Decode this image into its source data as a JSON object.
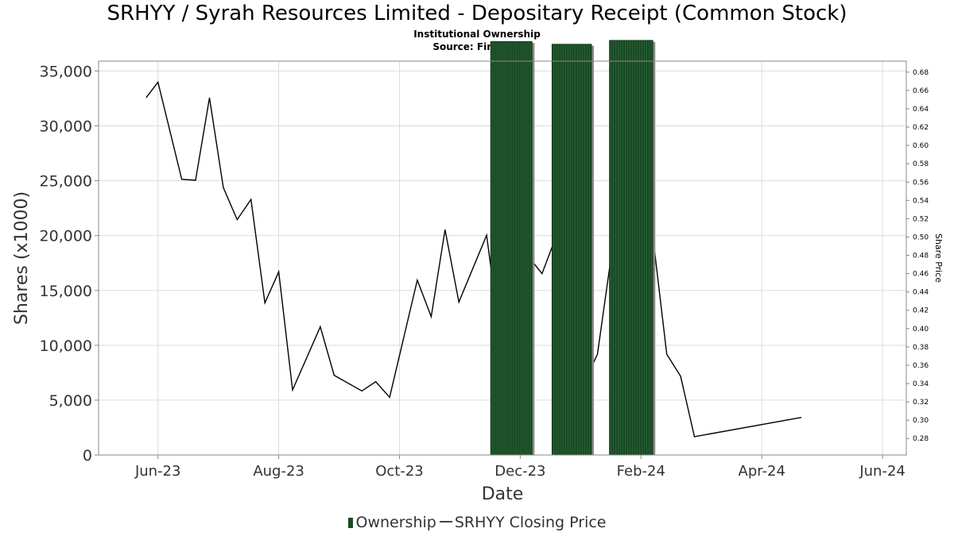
{
  "chart_data": {
    "type": "bar+line",
    "title": "SRHYY / Syrah Resources Limited - Depositary Receipt (Common Stock)",
    "subtitle1": "Institutional Ownership",
    "subtitle2": "Source: Fintel.io",
    "xlabel": "Date",
    "ylabel": "Shares (x1000)",
    "ylabel_right": "Share Price",
    "x_ticks": [
      "Jun-23",
      "Aug-23",
      "Oct-23",
      "Dec-23",
      "Feb-24",
      "Apr-24",
      "Jun-24"
    ],
    "y_ticks": [
      "0",
      "5,000",
      "10,000",
      "15,000",
      "20,000",
      "25,000",
      "30,000",
      "35,000"
    ],
    "y2_ticks": [
      "0.28",
      "0.30",
      "0.32",
      "0.34",
      "0.36",
      "0.38",
      "0.40",
      "0.42",
      "0.44",
      "0.46",
      "0.48",
      "0.50",
      "0.52",
      "0.54",
      "0.56",
      "0.58",
      "0.60",
      "0.62",
      "0.64",
      "0.66",
      "0.68"
    ],
    "ylim": [
      0,
      35900
    ],
    "y2lim": [
      0.262,
      0.692
    ],
    "x_range_days": [
      -16,
      392
    ],
    "x_tick_days": [
      14,
      75,
      136,
      197,
      258,
      319,
      380
    ],
    "ownership": {
      "name": "Ownership",
      "color": "#1a4a24",
      "bars": [
        {
          "start_day": 182,
          "end_day": 203,
          "shares": 37700
        },
        {
          "start_day": 213,
          "end_day": 233,
          "shares": 37450
        },
        {
          "start_day": 242,
          "end_day": 264,
          "shares": 37800
        }
      ]
    },
    "price": {
      "name": "SRHYY Closing Price",
      "color": "#000000",
      "points": [
        [
          8,
          0.652
        ],
        [
          14,
          0.669
        ],
        [
          26,
          0.563
        ],
        [
          33,
          0.562
        ],
        [
          40,
          0.652
        ],
        [
          47,
          0.554
        ],
        [
          54,
          0.519
        ],
        [
          61,
          0.541
        ],
        [
          68,
          0.428
        ],
        [
          75,
          0.462
        ],
        [
          82,
          0.333
        ],
        [
          96,
          0.402
        ],
        [
          103,
          0.349
        ],
        [
          117,
          0.332
        ],
        [
          124,
          0.342
        ],
        [
          131,
          0.325
        ],
        [
          145,
          0.453
        ],
        [
          152,
          0.413
        ],
        [
          159,
          0.508
        ],
        [
          166,
          0.429
        ],
        [
          180,
          0.502
        ],
        [
          187,
          0.387
        ],
        [
          201,
          0.479
        ],
        [
          208,
          0.46
        ],
        [
          215,
          0.5
        ],
        [
          222,
          0.3
        ],
        [
          229,
          0.34
        ],
        [
          236,
          0.372
        ],
        [
          243,
          0.48
        ],
        [
          250,
          0.448
        ],
        [
          257,
          0.48
        ],
        [
          264,
          0.5
        ],
        [
          271,
          0.372
        ],
        [
          278,
          0.348
        ],
        [
          285,
          0.282
        ],
        [
          339,
          0.303
        ]
      ]
    }
  },
  "legend": {
    "ownership_label": "Ownership",
    "price_label": "SRHYY Closing Price"
  }
}
